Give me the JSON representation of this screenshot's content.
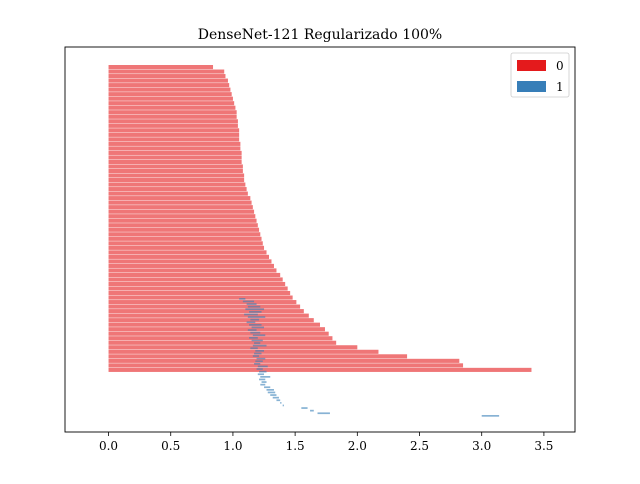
{
  "chart_data": {
    "type": "bar",
    "orientation": "horizontal",
    "title": "DenseNet-121 Regularizado 100%",
    "xlabel": "",
    "ylabel": "",
    "xlim": [
      -0.35,
      3.75
    ],
    "xticks": [
      0.0,
      0.5,
      1.0,
      1.5,
      2.0,
      2.5,
      3.0,
      3.5
    ],
    "xtick_labels": [
      "0.0",
      "0.5",
      "1.0",
      "1.5",
      "2.0",
      "2.5",
      "3.0",
      "3.5"
    ],
    "grid": false,
    "legend_position": "top-right",
    "series": [
      {
        "name": "0",
        "color": "#e41a1c",
        "opacity": 0.6,
        "starts": [
          0,
          0,
          0,
          0,
          0,
          0,
          0,
          0,
          0,
          0,
          0,
          0,
          0,
          0,
          0,
          0,
          0,
          0,
          0,
          0,
          0,
          0,
          0,
          0,
          0,
          0,
          0,
          0,
          0,
          0,
          0,
          0,
          0,
          0,
          0,
          0,
          0,
          0,
          0,
          0,
          0,
          0,
          0,
          0,
          0,
          0,
          0,
          0,
          0,
          0,
          0,
          0,
          0,
          0,
          0,
          0,
          0,
          0,
          0,
          0,
          0,
          0,
          0,
          0,
          0,
          0,
          0,
          0
        ],
        "values": [
          0.84,
          0.93,
          0.94,
          0.96,
          0.97,
          0.98,
          0.99,
          1.0,
          1.01,
          1.02,
          1.03,
          1.03,
          1.04,
          1.04,
          1.05,
          1.05,
          1.05,
          1.06,
          1.06,
          1.07,
          1.07,
          1.07,
          1.08,
          1.08,
          1.09,
          1.09,
          1.1,
          1.11,
          1.12,
          1.14,
          1.15,
          1.16,
          1.17,
          1.18,
          1.19,
          1.2,
          1.21,
          1.22,
          1.23,
          1.24,
          1.25,
          1.27,
          1.29,
          1.31,
          1.33,
          1.35,
          1.38,
          1.4,
          1.42,
          1.44,
          1.46,
          1.48,
          1.51,
          1.54,
          1.57,
          1.61,
          1.65,
          1.7,
          1.74,
          1.77,
          1.8,
          1.83,
          2.0,
          2.17,
          2.4,
          2.82,
          2.85,
          3.4
        ]
      },
      {
        "name": "1",
        "color": "#377eb8",
        "opacity": 0.6,
        "starts": [
          1.05,
          1.08,
          1.11,
          1.12,
          1.1,
          1.13,
          1.09,
          1.12,
          1.14,
          1.11,
          1.13,
          1.15,
          1.12,
          1.14,
          1.16,
          1.13,
          1.15,
          1.17,
          1.16,
          1.14,
          1.18,
          1.17,
          1.16,
          1.19,
          1.18,
          1.17,
          1.2,
          1.19,
          1.21,
          1.2,
          1.22,
          1.21,
          1.23,
          1.22,
          1.25,
          1.27,
          1.28,
          1.3,
          1.32,
          1.35,
          1.38,
          1.4,
          1.55,
          1.62,
          1.68,
          3.0
        ],
        "values": [
          1.1,
          1.17,
          1.19,
          1.22,
          1.25,
          1.23,
          1.2,
          1.26,
          1.21,
          1.18,
          1.23,
          1.25,
          1.19,
          1.22,
          1.26,
          1.2,
          1.24,
          1.22,
          1.27,
          1.2,
          1.25,
          1.23,
          1.21,
          1.26,
          1.24,
          1.22,
          1.28,
          1.24,
          1.27,
          1.25,
          1.3,
          1.26,
          1.27,
          1.26,
          1.3,
          1.33,
          1.34,
          1.35,
          1.37,
          1.38,
          1.39,
          1.41,
          1.6,
          1.65,
          1.78,
          3.14
        ]
      }
    ]
  }
}
